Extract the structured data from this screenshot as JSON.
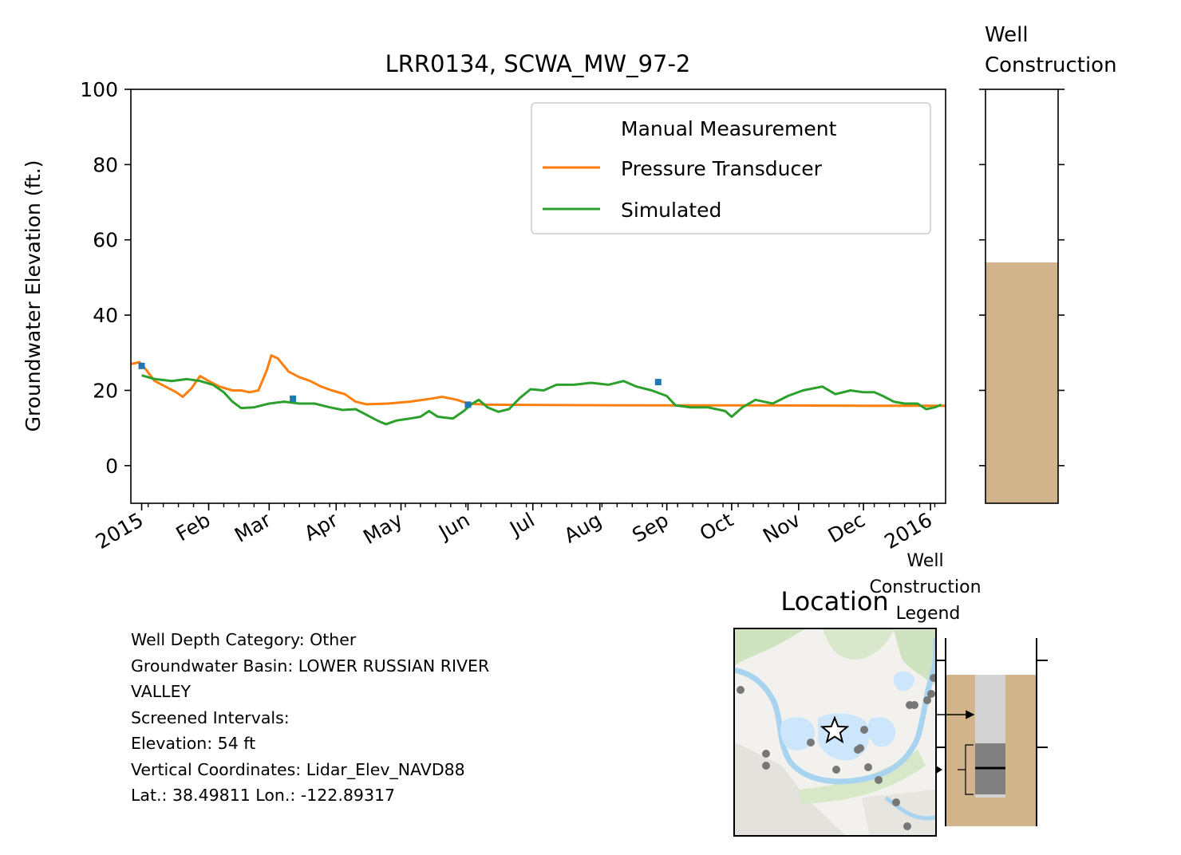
{
  "chart_data": [
    {
      "type": "line",
      "title": "LRR0134, SCWA_MW_97-2",
      "xlabel": "",
      "ylabel": "Groundwater Elevation (ft.)",
      "ylim": [
        -10,
        100
      ],
      "yticks": [
        0,
        20,
        40,
        60,
        80,
        100
      ],
      "xlim": [
        "2014-12-27",
        "2016-01-08"
      ],
      "xtick_labels": [
        {
          "date": "2015-01-01",
          "label": "2015"
        },
        {
          "date": "2015-02-01",
          "label": "Feb"
        },
        {
          "date": "2015-03-01",
          "label": "Mar"
        },
        {
          "date": "2015-04-01",
          "label": "Apr"
        },
        {
          "date": "2015-05-01",
          "label": "May"
        },
        {
          "date": "2015-06-01",
          "label": "Jun"
        },
        {
          "date": "2015-07-01",
          "label": "Jul"
        },
        {
          "date": "2015-08-01",
          "label": "Aug"
        },
        {
          "date": "2015-09-01",
          "label": "Sep"
        },
        {
          "date": "2015-10-01",
          "label": "Oct"
        },
        {
          "date": "2015-11-01",
          "label": "Nov"
        },
        {
          "date": "2015-12-01",
          "label": "Dec"
        },
        {
          "date": "2016-01-01",
          "label": "2016"
        }
      ],
      "legend": {
        "placement": "upper-right",
        "entries": [
          "Manual Measurement",
          "Pressure Transducer",
          "Simulated"
        ]
      },
      "series": [
        {
          "name": "Manual Measurement",
          "kind": "scatter",
          "color": "#1f77b4",
          "points": [
            {
              "x": "2015-01-01",
              "y": 26.5
            },
            {
              "x": "2015-03-12",
              "y": 17.8
            },
            {
              "x": "2015-06-01",
              "y": 16.2
            },
            {
              "x": "2015-08-28",
              "y": 22.2
            }
          ]
        },
        {
          "name": "Pressure Transducer",
          "kind": "line",
          "color": "#ff7f0e",
          "points": [
            {
              "x": "2014-12-27",
              "y": 27.0
            },
            {
              "x": "2014-12-31",
              "y": 27.5
            },
            {
              "x": "2015-01-03",
              "y": 25.5
            },
            {
              "x": "2015-01-07",
              "y": 22.5
            },
            {
              "x": "2015-01-12",
              "y": 21.0
            },
            {
              "x": "2015-01-17",
              "y": 19.5
            },
            {
              "x": "2015-01-20",
              "y": 18.3
            },
            {
              "x": "2015-01-24",
              "y": 20.5
            },
            {
              "x": "2015-01-28",
              "y": 23.8
            },
            {
              "x": "2015-02-01",
              "y": 22.5
            },
            {
              "x": "2015-02-06",
              "y": 21.0
            },
            {
              "x": "2015-02-12",
              "y": 20.0
            },
            {
              "x": "2015-02-16",
              "y": 20.0
            },
            {
              "x": "2015-02-20",
              "y": 19.5
            },
            {
              "x": "2015-02-24",
              "y": 20.0
            },
            {
              "x": "2015-02-28",
              "y": 25.5
            },
            {
              "x": "2015-03-02",
              "y": 29.3
            },
            {
              "x": "2015-03-05",
              "y": 28.5
            },
            {
              "x": "2015-03-10",
              "y": 25.0
            },
            {
              "x": "2015-03-15",
              "y": 23.5
            },
            {
              "x": "2015-03-20",
              "y": 22.5
            },
            {
              "x": "2015-03-25",
              "y": 21.0
            },
            {
              "x": "2015-03-30",
              "y": 20.0
            },
            {
              "x": "2015-04-05",
              "y": 19.0
            },
            {
              "x": "2015-04-10",
              "y": 17.0
            },
            {
              "x": "2015-04-15",
              "y": 16.3
            },
            {
              "x": "2015-04-25",
              "y": 16.5
            },
            {
              "x": "2015-05-05",
              "y": 17.0
            },
            {
              "x": "2015-05-15",
              "y": 17.8
            },
            {
              "x": "2015-05-20",
              "y": 18.3
            },
            {
              "x": "2015-05-27",
              "y": 17.5
            },
            {
              "x": "2015-06-01",
              "y": 16.5
            },
            {
              "x": "2015-06-10",
              "y": 16.2
            },
            {
              "x": "2015-07-15",
              "y": 16.1
            },
            {
              "x": "2015-09-01",
              "y": 16.0
            },
            {
              "x": "2015-10-15",
              "y": 16.0
            },
            {
              "x": "2015-12-01",
              "y": 15.9
            },
            {
              "x": "2016-01-08",
              "y": 15.9
            }
          ]
        },
        {
          "name": "Simulated",
          "kind": "line",
          "color": "#2ca02c",
          "points": [
            {
              "x": "2015-01-01",
              "y": 24.0
            },
            {
              "x": "2015-01-07",
              "y": 23.0
            },
            {
              "x": "2015-01-15",
              "y": 22.5
            },
            {
              "x": "2015-01-22",
              "y": 23.0
            },
            {
              "x": "2015-01-28",
              "y": 22.5
            },
            {
              "x": "2015-02-03",
              "y": 21.5
            },
            {
              "x": "2015-02-08",
              "y": 19.5
            },
            {
              "x": "2015-02-12",
              "y": 17.0
            },
            {
              "x": "2015-02-16",
              "y": 15.3
            },
            {
              "x": "2015-02-22",
              "y": 15.5
            },
            {
              "x": "2015-03-01",
              "y": 16.5
            },
            {
              "x": "2015-03-08",
              "y": 17.0
            },
            {
              "x": "2015-03-15",
              "y": 16.5
            },
            {
              "x": "2015-03-22",
              "y": 16.5
            },
            {
              "x": "2015-03-29",
              "y": 15.5
            },
            {
              "x": "2015-04-04",
              "y": 14.8
            },
            {
              "x": "2015-04-10",
              "y": 15.0
            },
            {
              "x": "2015-04-15",
              "y": 13.5
            },
            {
              "x": "2015-04-20",
              "y": 12.0
            },
            {
              "x": "2015-04-24",
              "y": 11.0
            },
            {
              "x": "2015-04-29",
              "y": 12.0
            },
            {
              "x": "2015-05-05",
              "y": 12.5
            },
            {
              "x": "2015-05-10",
              "y": 13.0
            },
            {
              "x": "2015-05-14",
              "y": 14.5
            },
            {
              "x": "2015-05-18",
              "y": 13.0
            },
            {
              "x": "2015-05-25",
              "y": 12.5
            },
            {
              "x": "2015-05-30",
              "y": 14.5
            },
            {
              "x": "2015-06-03",
              "y": 16.5
            },
            {
              "x": "2015-06-06",
              "y": 17.5
            },
            {
              "x": "2015-06-10",
              "y": 15.5
            },
            {
              "x": "2015-06-15",
              "y": 14.3
            },
            {
              "x": "2015-06-20",
              "y": 15.0
            },
            {
              "x": "2015-06-25",
              "y": 18.0
            },
            {
              "x": "2015-06-30",
              "y": 20.3
            },
            {
              "x": "2015-07-06",
              "y": 20.0
            },
            {
              "x": "2015-07-12",
              "y": 21.5
            },
            {
              "x": "2015-07-20",
              "y": 21.5
            },
            {
              "x": "2015-07-28",
              "y": 22.0
            },
            {
              "x": "2015-08-05",
              "y": 21.5
            },
            {
              "x": "2015-08-12",
              "y": 22.5
            },
            {
              "x": "2015-08-18",
              "y": 21.0
            },
            {
              "x": "2015-08-25",
              "y": 20.0
            },
            {
              "x": "2015-09-01",
              "y": 18.5
            },
            {
              "x": "2015-09-05",
              "y": 16.0
            },
            {
              "x": "2015-09-12",
              "y": 15.5
            },
            {
              "x": "2015-09-20",
              "y": 15.5
            },
            {
              "x": "2015-09-28",
              "y": 14.5
            },
            {
              "x": "2015-10-01",
              "y": 13.0
            },
            {
              "x": "2015-10-06",
              "y": 15.5
            },
            {
              "x": "2015-10-12",
              "y": 17.5
            },
            {
              "x": "2015-10-20",
              "y": 16.5
            },
            {
              "x": "2015-10-27",
              "y": 18.5
            },
            {
              "x": "2015-11-03",
              "y": 20.0
            },
            {
              "x": "2015-11-12",
              "y": 21.0
            },
            {
              "x": "2015-11-18",
              "y": 19.0
            },
            {
              "x": "2015-11-25",
              "y": 20.0
            },
            {
              "x": "2015-12-01",
              "y": 19.5
            },
            {
              "x": "2015-12-06",
              "y": 19.5
            },
            {
              "x": "2015-12-10",
              "y": 18.5
            },
            {
              "x": "2015-12-15",
              "y": 17.0
            },
            {
              "x": "2015-12-20",
              "y": 16.5
            },
            {
              "x": "2015-12-26",
              "y": 16.5
            },
            {
              "x": "2015-12-30",
              "y": 15.0
            },
            {
              "x": "2016-01-03",
              "y": 15.5
            },
            {
              "x": "2016-01-06",
              "y": 16.2
            }
          ]
        }
      ]
    },
    {
      "type": "bar",
      "title": "Well\nConstruction",
      "ylim": [
        -10,
        100
      ],
      "ground_surface_elevation": 54,
      "ground_color": "#d2b48c"
    }
  ],
  "info": {
    "lines": [
      "Well Depth Category: Other",
      "Groundwater Basin: LOWER RUSSIAN RIVER",
      "VALLEY",
      "Screened Intervals:",
      "Elevation: 54 ft",
      "Vertical Coordinates: Lidar_Elev_NAVD88",
      "Lat.: 38.49811 Lon.: -122.89317"
    ]
  },
  "location": {
    "title": "Location",
    "marker": "star-icon"
  },
  "legend_panel": {
    "title": "Well\nConstruction\nLegend"
  }
}
